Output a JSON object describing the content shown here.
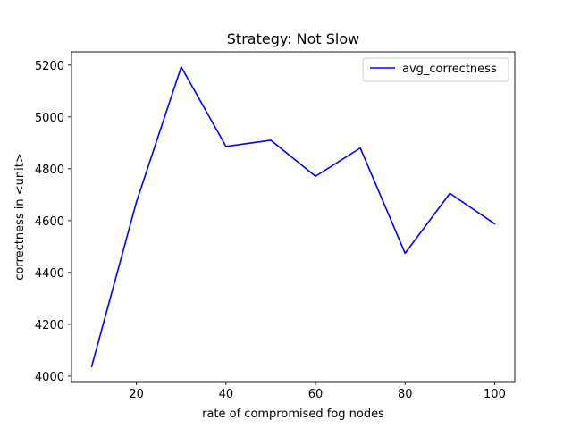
{
  "chart_data": {
    "type": "line",
    "title": "Strategy: Not Slow",
    "xlabel": "rate of compromised fog nodes",
    "ylabel": "correctness in <unit>",
    "x": [
      10,
      20,
      30,
      40,
      50,
      60,
      70,
      80,
      90,
      100
    ],
    "series": [
      {
        "name": "avg_correctness",
        "color": "#0000ff",
        "values": [
          4037,
          4672,
          5193,
          4886,
          4910,
          4771,
          4880,
          4474,
          4705,
          4588
        ]
      }
    ],
    "xlim": [
      5.5,
      104.5
    ],
    "ylim": [
      3979,
      5251
    ],
    "xticks": [
      20,
      40,
      60,
      80,
      100
    ],
    "yticks": [
      4000,
      4200,
      4400,
      4600,
      4800,
      5000,
      5200
    ],
    "grid": false,
    "legend_position": "upper right"
  }
}
